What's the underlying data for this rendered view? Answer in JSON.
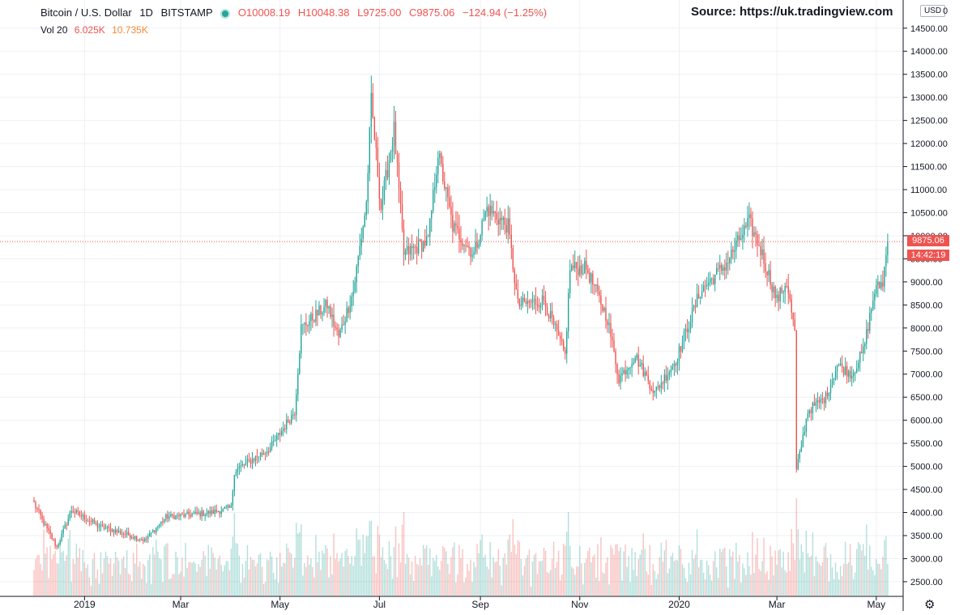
{
  "header": {
    "symbol": "Bitcoin / U.S. Dollar",
    "interval": "1D",
    "exchange": "BITSTAMP",
    "open": "O10008.19",
    "high": "H10048.38",
    "low": "L9725.00",
    "close": "C9875.06",
    "change": "−124.94 (−1.25%)"
  },
  "volume_legend": {
    "label": "Vol 20",
    "v1": "6.025K",
    "v2": "10.735K"
  },
  "source": "Source:  https://uk.tradingview.com",
  "currency": "USD",
  "currency_zero": "0",
  "last_price_label": "9875.06",
  "countdown_label": "14:42:19",
  "colors": {
    "up": "#26a69a",
    "down": "#ef5350",
    "grid": "#eef0f3",
    "price_line": "#ef5350"
  },
  "settings_icon": "gear-icon",
  "chart_data": {
    "type": "candlestick",
    "title": "",
    "xlabel": "",
    "ylabel": "",
    "ylim": [
      2200,
      14900
    ],
    "y_ticks": [
      14500,
      14000,
      13500,
      13000,
      12500,
      12000,
      11500,
      11000,
      10500,
      10000,
      9500,
      9000,
      8500,
      8000,
      7500,
      7000,
      6500,
      6000,
      5500,
      5000,
      4500,
      4000,
      3500,
      3000,
      2500
    ],
    "x_start": "2018-12-01",
    "x_end": "2020-05-16",
    "x_ticks": [
      {
        "date": "2019-01-01",
        "label": "2019"
      },
      {
        "date": "2019-03-01",
        "label": "Mar"
      },
      {
        "date": "2019-05-01",
        "label": "May"
      },
      {
        "date": "2019-07-01",
        "label": "Jul"
      },
      {
        "date": "2019-09-01",
        "label": "Sep"
      },
      {
        "date": "2019-11-01",
        "label": "Nov"
      },
      {
        "date": "2020-01-01",
        "label": "2020"
      },
      {
        "date": "2020-03-01",
        "label": "Mar"
      },
      {
        "date": "2020-05-01",
        "label": "May"
      }
    ],
    "last_price": 9875.06,
    "price_anchors": [
      [
        "2018-12-01",
        4200
      ],
      [
        "2018-12-08",
        3700
      ],
      [
        "2018-12-15",
        3250
      ],
      [
        "2018-12-19",
        3600
      ],
      [
        "2018-12-24",
        4050
      ],
      [
        "2019-01-10",
        3700
      ],
      [
        "2019-01-20",
        3600
      ],
      [
        "2019-02-07",
        3400
      ],
      [
        "2019-02-20",
        3900
      ],
      [
        "2019-03-20",
        4000
      ],
      [
        "2019-04-01",
        4100
      ],
      [
        "2019-04-03",
        4900
      ],
      [
        "2019-04-25",
        5400
      ],
      [
        "2019-05-10",
        6200
      ],
      [
        "2019-05-14",
        8000
      ],
      [
        "2019-05-30",
        8500
      ],
      [
        "2019-06-06",
        7800
      ],
      [
        "2019-06-15",
        8800
      ],
      [
        "2019-06-23",
        10700
      ],
      [
        "2019-06-26",
        12900
      ],
      [
        "2019-07-02",
        10600
      ],
      [
        "2019-07-10",
        12300
      ],
      [
        "2019-07-16",
        9600
      ],
      [
        "2019-07-31",
        9900
      ],
      [
        "2019-08-06",
        11800
      ],
      [
        "2019-08-15",
        10200
      ],
      [
        "2019-08-28",
        9600
      ],
      [
        "2019-09-05",
        10600
      ],
      [
        "2019-09-18",
        10200
      ],
      [
        "2019-09-24",
        8500
      ],
      [
        "2019-10-10",
        8600
      ],
      [
        "2019-10-23",
        7400
      ],
      [
        "2019-10-26",
        9300
      ],
      [
        "2019-11-05",
        9300
      ],
      [
        "2019-11-18",
        8200
      ],
      [
        "2019-11-25",
        6900
      ],
      [
        "2019-12-05",
        7400
      ],
      [
        "2019-12-17",
        6600
      ],
      [
        "2019-12-30",
        7300
      ],
      [
        "2020-01-14",
        8800
      ],
      [
        "2020-01-30",
        9400
      ],
      [
        "2020-02-13",
        10300
      ],
      [
        "2020-02-20",
        9700
      ],
      [
        "2020-03-01",
        8600
      ],
      [
        "2020-03-07",
        9000
      ],
      [
        "2020-03-12",
        7900
      ],
      [
        "2020-03-13",
        4900
      ],
      [
        "2020-03-20",
        6200
      ],
      [
        "2020-03-31",
        6500
      ],
      [
        "2020-04-07",
        7200
      ],
      [
        "2020-04-16",
        7000
      ],
      [
        "2020-04-23",
        7500
      ],
      [
        "2020-04-30",
        8800
      ],
      [
        "2020-05-05",
        9000
      ],
      [
        "2020-05-08",
        9875
      ]
    ],
    "volume_scale_max": 6000,
    "candle_count_note": ""
  }
}
